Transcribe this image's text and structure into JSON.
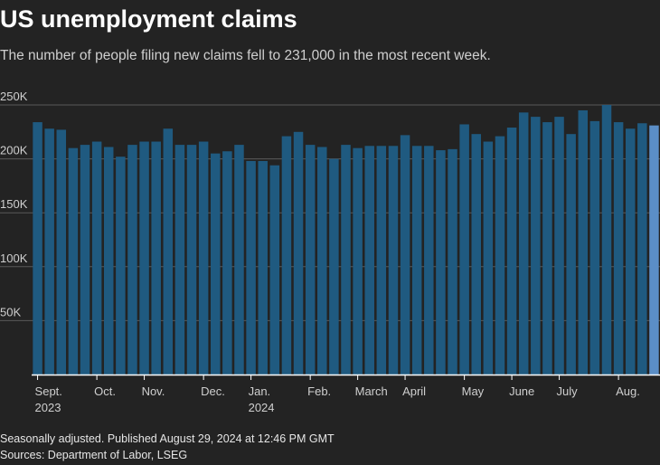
{
  "header": {
    "title": "US unemployment claims",
    "subtitle": "The number of people filing new claims fell to 231,000 in the most recent week."
  },
  "footer": {
    "note": "Seasonally adjusted. Published August 29, 2024 at 12:46 PM GMT",
    "source": "Sources: Department of Labor, LSEG"
  },
  "colors": {
    "background": "#232323",
    "bar": "#1f5a80",
    "bar_latest": "#5b8ec7",
    "gridline": "#5a5a5a",
    "axis": "#ffffff",
    "tick_text": "#cfcfcf"
  },
  "chart_data": {
    "type": "bar",
    "title": "US unemployment claims",
    "subtitle": "The number of people filing new claims fell to 231,000 in the most recent week.",
    "ylim": [
      0,
      250000
    ],
    "y_ticks": [
      50000,
      100000,
      150000,
      200000,
      250000
    ],
    "y_tick_labels": [
      "50K",
      "100K",
      "150K",
      "200K",
      "250K"
    ],
    "grid": true,
    "x_labels": [
      {
        "bar_index": 0,
        "label": "Sept.",
        "sublabel": "2023"
      },
      {
        "bar_index": 5,
        "label": "Oct.",
        "sublabel": ""
      },
      {
        "bar_index": 9,
        "label": "Nov.",
        "sublabel": ""
      },
      {
        "bar_index": 14,
        "label": "Dec.",
        "sublabel": ""
      },
      {
        "bar_index": 18,
        "label": "Jan.",
        "sublabel": "2024"
      },
      {
        "bar_index": 23,
        "label": "Feb.",
        "sublabel": ""
      },
      {
        "bar_index": 27,
        "label": "March",
        "sublabel": ""
      },
      {
        "bar_index": 31,
        "label": "April",
        "sublabel": ""
      },
      {
        "bar_index": 36,
        "label": "May",
        "sublabel": ""
      },
      {
        "bar_index": 40,
        "label": "June",
        "sublabel": ""
      },
      {
        "bar_index": 44,
        "label": "July",
        "sublabel": ""
      },
      {
        "bar_index": 49,
        "label": "Aug.",
        "sublabel": ""
      }
    ],
    "values": [
      234000,
      228000,
      227000,
      210000,
      213000,
      216000,
      211000,
      202000,
      213000,
      216000,
      216000,
      228000,
      213000,
      213000,
      216000,
      205000,
      207000,
      213000,
      198000,
      198000,
      194000,
      221000,
      225000,
      213000,
      211000,
      200000,
      213000,
      210000,
      212000,
      212000,
      212000,
      222000,
      212000,
      212000,
      208000,
      209000,
      232000,
      223000,
      216000,
      221000,
      229000,
      243000,
      239000,
      234000,
      239000,
      223000,
      245000,
      235000,
      250000,
      234000,
      228000,
      233000,
      231000
    ],
    "highlight_last": true
  }
}
